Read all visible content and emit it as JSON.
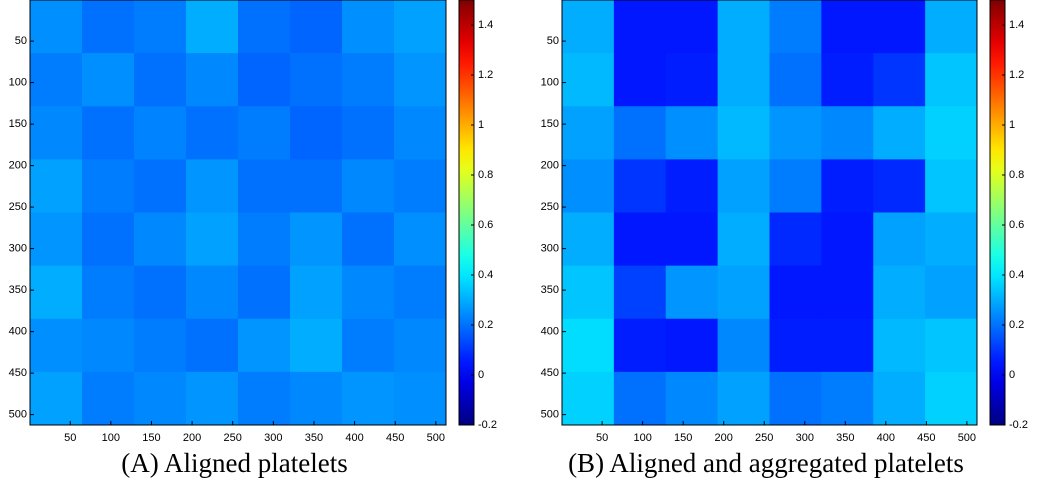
{
  "chart_data": [
    {
      "type": "heatmap",
      "caption": "(A) Aligned platelets",
      "colormap": "jet",
      "xlim": [
        0.5,
        512.5
      ],
      "ylim": [
        0.5,
        512.5
      ],
      "xticks": [
        50,
        100,
        150,
        200,
        250,
        300,
        350,
        400,
        450,
        500
      ],
      "yticks": [
        50,
        100,
        150,
        200,
        250,
        300,
        350,
        400,
        450,
        500
      ],
      "clim": [
        -0.2,
        1.5
      ],
      "cticks": [
        -0.2,
        0,
        0.2,
        0.4,
        0.6,
        0.8,
        1,
        1.2,
        1.4
      ],
      "values": [
        [
          0.25,
          0.2,
          0.22,
          0.3,
          0.2,
          0.18,
          0.25,
          0.28
        ],
        [
          0.22,
          0.25,
          0.2,
          0.24,
          0.18,
          0.2,
          0.22,
          0.26
        ],
        [
          0.24,
          0.2,
          0.23,
          0.2,
          0.22,
          0.18,
          0.2,
          0.24
        ],
        [
          0.28,
          0.22,
          0.2,
          0.26,
          0.2,
          0.2,
          0.24,
          0.22
        ],
        [
          0.26,
          0.2,
          0.24,
          0.28,
          0.22,
          0.26,
          0.2,
          0.25
        ],
        [
          0.3,
          0.22,
          0.2,
          0.24,
          0.2,
          0.28,
          0.24,
          0.22
        ],
        [
          0.25,
          0.24,
          0.22,
          0.2,
          0.26,
          0.3,
          0.22,
          0.24
        ],
        [
          0.28,
          0.22,
          0.24,
          0.26,
          0.22,
          0.24,
          0.26,
          0.25
        ]
      ]
    },
    {
      "type": "heatmap",
      "caption": "(B) Aligned and aggregated platelets",
      "colormap": "jet",
      "xlim": [
        0.5,
        512.5
      ],
      "ylim": [
        0.5,
        512.5
      ],
      "xticks": [
        50,
        100,
        150,
        200,
        250,
        300,
        350,
        400,
        450,
        500
      ],
      "yticks": [
        50,
        100,
        150,
        200,
        250,
        300,
        350,
        400,
        450,
        500
      ],
      "clim": [
        -0.2,
        1.5
      ],
      "cticks": [
        -0.2,
        0,
        0.2,
        0.4,
        0.6,
        0.8,
        1,
        1.2,
        1.4
      ],
      "values": [
        [
          0.3,
          0.05,
          0.05,
          0.3,
          0.22,
          0.05,
          0.05,
          0.3
        ],
        [
          0.32,
          0.05,
          0.06,
          0.3,
          0.2,
          0.06,
          0.1,
          0.34
        ],
        [
          0.28,
          0.2,
          0.25,
          0.32,
          0.26,
          0.24,
          0.3,
          0.36
        ],
        [
          0.25,
          0.1,
          0.06,
          0.28,
          0.22,
          0.06,
          0.08,
          0.34
        ],
        [
          0.3,
          0.05,
          0.05,
          0.3,
          0.08,
          0.05,
          0.28,
          0.3
        ],
        [
          0.34,
          0.12,
          0.26,
          0.28,
          0.05,
          0.05,
          0.3,
          0.28
        ],
        [
          0.38,
          0.06,
          0.05,
          0.24,
          0.06,
          0.06,
          0.32,
          0.34
        ],
        [
          0.36,
          0.2,
          0.24,
          0.28,
          0.2,
          0.22,
          0.3,
          0.36
        ]
      ]
    }
  ]
}
